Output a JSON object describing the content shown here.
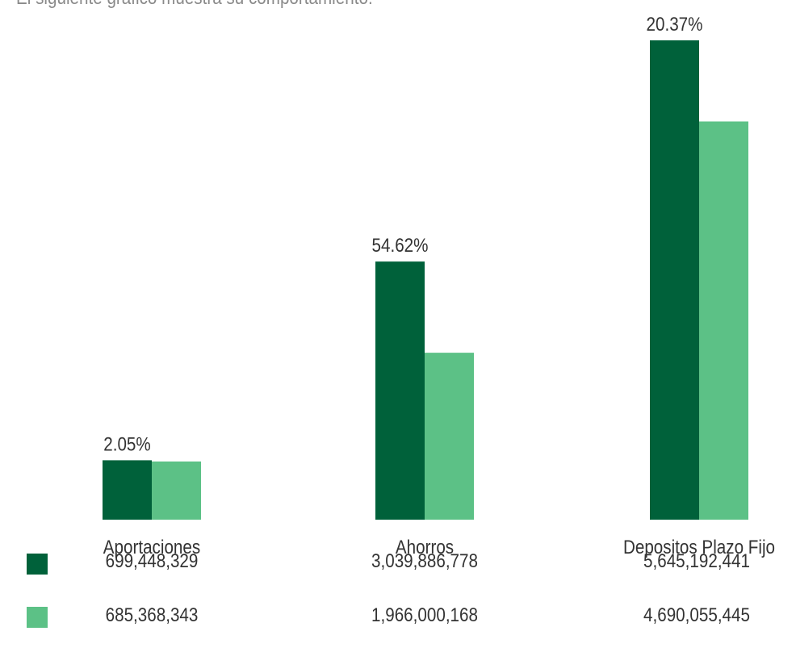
{
  "intro_text": "El siguiente gráfico muestra su comportamiento:",
  "colors": {
    "series_dark": "#00613A",
    "series_light": "#5CC186",
    "text": "#333333",
    "intro": "#8a8a8a"
  },
  "chart_data": {
    "type": "bar",
    "categories": [
      "Aportaciones",
      "Ahorros",
      "Depositos Plazo Fijo"
    ],
    "growth_labels": [
      "2.05%",
      "54.62%",
      "20.37%"
    ],
    "series": [
      {
        "values": [
          699448329,
          3039886778,
          5645192441
        ],
        "display": [
          "699,448,329",
          "3,039,886,778",
          "5,645,192,441"
        ]
      },
      {
        "values": [
          685368343,
          1966000168,
          4690055445
        ],
        "display": [
          "685,368,343",
          "1,966,000,168",
          "4,690,055,445"
        ]
      }
    ],
    "grid": false
  }
}
